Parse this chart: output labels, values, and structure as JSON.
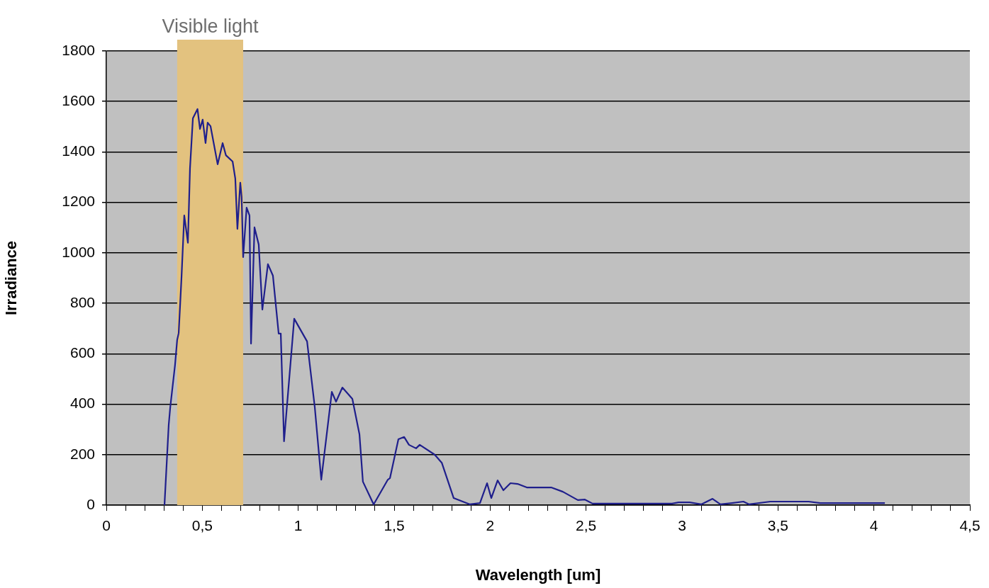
{
  "chart_data": {
    "type": "line",
    "xlabel": "Wavelength [um]",
    "ylabel": "Irradiance",
    "series": [
      {
        "color": "#1f1f8c",
        "x": [
          0.303,
          0.325,
          0.333,
          0.358,
          0.369,
          0.377,
          0.392,
          0.406,
          0.425,
          0.436,
          0.451,
          0.475,
          0.488,
          0.502,
          0.517,
          0.528,
          0.543,
          0.58,
          0.606,
          0.623,
          0.658,
          0.672,
          0.683,
          0.698,
          0.705,
          0.713,
          0.731,
          0.746,
          0.754,
          0.772,
          0.794,
          0.813,
          0.842,
          0.868,
          0.898,
          0.909,
          0.926,
          0.979,
          1.046,
          1.086,
          1.12,
          1.175,
          1.197,
          1.23,
          1.282,
          1.319,
          1.337,
          1.393,
          1.467,
          1.478,
          1.522,
          1.552,
          1.577,
          1.614,
          1.633,
          1.711,
          1.748,
          1.81,
          1.895,
          1.947,
          1.984,
          2.006,
          2.039,
          2.069,
          2.106,
          2.143,
          2.191,
          2.254,
          2.318,
          2.379,
          2.457,
          2.494,
          2.534,
          2.948,
          2.982,
          3.04,
          3.1,
          3.159,
          3.2,
          3.26,
          3.32,
          3.35,
          3.46,
          3.66,
          3.72,
          4.057
        ],
        "values": [
          0,
          318,
          388,
          556,
          654,
          682,
          907,
          1148,
          1040,
          1336,
          1533,
          1570,
          1491,
          1528,
          1435,
          1516,
          1502,
          1351,
          1435,
          1387,
          1362,
          1294,
          1095,
          1278,
          1222,
          983,
          1179,
          1148,
          640,
          1101,
          1033,
          775,
          955,
          910,
          680,
          680,
          253,
          739,
          649,
          390,
          101,
          449,
          410,
          466,
          421,
          281,
          93,
          3,
          101,
          107,
          261,
          270,
          239,
          225,
          239,
          200,
          168,
          28,
          3,
          8,
          87,
          28,
          98,
          59,
          87,
          84,
          70,
          70,
          70,
          53,
          20,
          22,
          6,
          6,
          11,
          11,
          3,
          25,
          3,
          8,
          14,
          3,
          14,
          14,
          8,
          8
        ]
      }
    ],
    "xlim": [
      0,
      4.5
    ],
    "xticks": [
      0,
      {
        "value": 0.1,
        "label": null
      },
      {
        "value": 0.2,
        "label": null
      },
      {
        "value": 0.3,
        "label": null
      },
      {
        "value": 0.4,
        "label": null
      },
      {
        "value": 0.5,
        "label": "0,5"
      },
      {
        "value": 0.6,
        "label": null
      },
      {
        "value": 0.7,
        "label": null
      },
      {
        "value": 0.8,
        "label": null
      },
      {
        "value": 0.9,
        "label": null
      },
      1,
      {
        "value": 1.1,
        "label": null
      },
      {
        "value": 1.2,
        "label": null
      },
      {
        "value": 1.3,
        "label": null
      },
      {
        "value": 1.4,
        "label": null
      },
      {
        "value": 1.5,
        "label": "1,5"
      },
      {
        "value": 1.6,
        "label": null
      },
      {
        "value": 1.7,
        "label": null
      },
      {
        "value": 1.8,
        "label": null
      },
      {
        "value": 1.9,
        "label": null
      },
      2,
      {
        "value": 2.1,
        "label": null
      },
      {
        "value": 2.2,
        "label": null
      },
      {
        "value": 2.3,
        "label": null
      },
      {
        "value": 2.4,
        "label": null
      },
      {
        "value": 2.5,
        "label": "2,5"
      },
      {
        "value": 2.6,
        "label": null
      },
      {
        "value": 2.7,
        "label": null
      },
      {
        "value": 2.8,
        "label": null
      },
      {
        "value": 2.9,
        "label": null
      },
      3,
      {
        "value": 3.1,
        "label": null
      },
      {
        "value": 3.2,
        "label": null
      },
      {
        "value": 3.3,
        "label": null
      },
      {
        "value": 3.4,
        "label": null
      },
      {
        "value": 3.5,
        "label": "3,5"
      },
      {
        "value": 3.6,
        "label": null
      },
      {
        "value": 3.7,
        "label": null
      },
      {
        "value": 3.8,
        "label": null
      },
      {
        "value": 3.9,
        "label": null
      },
      4,
      {
        "value": 4.1,
        "label": null
      },
      {
        "value": 4.2,
        "label": null
      },
      {
        "value": 4.3,
        "label": null
      },
      {
        "value": 4.4,
        "label": null
      },
      {
        "value": 4.5,
        "label": "4,5"
      }
    ],
    "ylim": [
      0,
      1800
    ],
    "yticks": [
      0,
      200,
      400,
      600,
      800,
      1000,
      1200,
      1400,
      1600,
      1800
    ],
    "bands": [
      {
        "axis": "x",
        "from": 0.369,
        "to": 0.713,
        "label": "Visible light",
        "color": "#e3c27f"
      }
    ],
    "grid": "y",
    "legend": false,
    "marker": "none",
    "line_style": "solid"
  }
}
